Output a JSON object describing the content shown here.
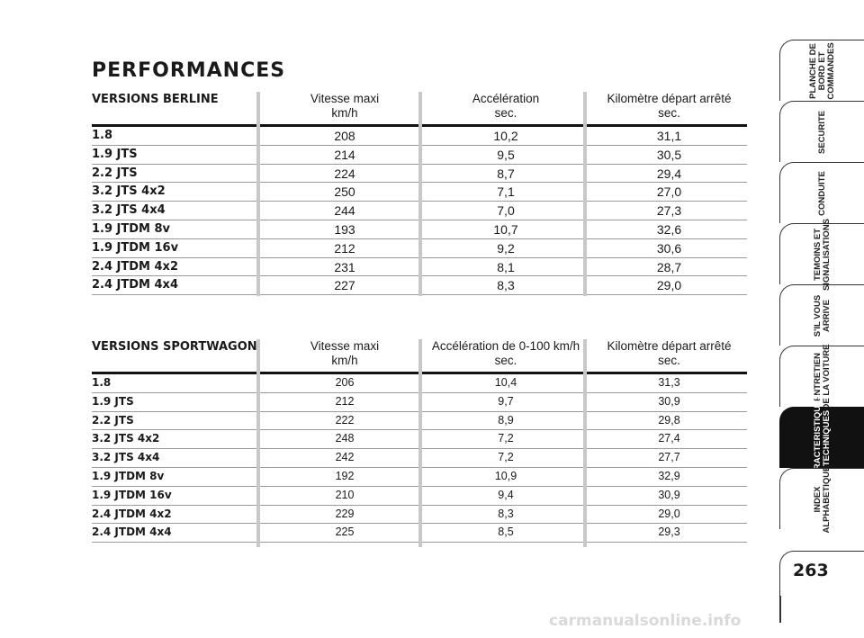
{
  "page_title": "PERFORMANCES",
  "table_berline": {
    "title": "VERSIONS BERLINE",
    "col1": [
      "Vitesse maxi",
      "km/h"
    ],
    "col2": [
      "Accélération",
      "sec."
    ],
    "col3": [
      "Kilomètre départ arrêté",
      "sec."
    ],
    "rows": [
      {
        "name": "1.8",
        "v1": "208",
        "v2": "10,2",
        "v3": "31,1"
      },
      {
        "name": "1.9 JTS",
        "v1": "214",
        "v2": "9,5",
        "v3": "30,5"
      },
      {
        "name": "2.2 JTS",
        "v1": "224",
        "v2": "8,7",
        "v3": "29,4"
      },
      {
        "name": "3.2 JTS 4x2",
        "v1": "250",
        "v2": "7,1",
        "v3": "27,0"
      },
      {
        "name": "3.2 JTS 4x4",
        "v1": "244",
        "v2": "7,0",
        "v3": "27,3"
      },
      {
        "name": "1.9 JTDM 8v",
        "v1": "193",
        "v2": "10,7",
        "v3": "32,6"
      },
      {
        "name": "1.9 JTDM 16v",
        "v1": "212",
        "v2": "9,2",
        "v3": "30,6"
      },
      {
        "name": "2.4 JTDM 4x2",
        "v1": "231",
        "v2": "8,1",
        "v3": "28,7"
      },
      {
        "name": "2.4 JTDM 4x4",
        "v1": "227",
        "v2": "8,3",
        "v3": "29,0"
      }
    ]
  },
  "table_sportwagon": {
    "title": "VERSIONS SPORTWAGON",
    "col1": [
      "Vitesse maxi",
      "km/h"
    ],
    "col2": [
      "Accélération de 0-100 km/h",
      "sec."
    ],
    "col3": [
      "Kilomètre départ arrêté",
      "sec."
    ],
    "rows": [
      {
        "name": "1.8",
        "v1": "206",
        "v2": "10,4",
        "v3": "31,3"
      },
      {
        "name": "1.9 JTS",
        "v1": "212",
        "v2": "9,7",
        "v3": "30,9"
      },
      {
        "name": "2.2 JTS",
        "v1": "222",
        "v2": "8,9",
        "v3": "29,8"
      },
      {
        "name": "3.2 JTS 4x2",
        "v1": "248",
        "v2": "7,2",
        "v3": "27,4"
      },
      {
        "name": "3.2 JTS 4x4",
        "v1": "242",
        "v2": "7,2",
        "v3": "27,7"
      },
      {
        "name": "1.9 JTDM 8v",
        "v1": "192",
        "v2": "10,9",
        "v3": "32,9"
      },
      {
        "name": "1.9 JTDM 16v",
        "v1": "210",
        "v2": "9,4",
        "v3": "30,9"
      },
      {
        "name": "2.4 JTDM 4x2",
        "v1": "229",
        "v2": "8,3",
        "v3": "29,0"
      },
      {
        "name": "2.4 JTDM 4x4",
        "v1": "225",
        "v2": "8,5",
        "v3": "29,3"
      }
    ]
  },
  "tabs": [
    {
      "label": "PLANCHE DE\nBORD ET\nCOMMANDES",
      "active": false
    },
    {
      "label": "SECURITE",
      "active": false
    },
    {
      "label": "CONDUITE",
      "active": false
    },
    {
      "label": "TEMOINS ET\nSIGNALISATIONS",
      "active": false
    },
    {
      "label": "S'IL VOUS\nARRIVE",
      "active": false
    },
    {
      "label": "ENTRETIEN\nDE LA VOITURE",
      "active": false
    },
    {
      "label": "CARACTERISTIQUES\nTECHNIQUES",
      "active": true
    },
    {
      "label": "INDEX\nALPHABETIQUE",
      "active": false
    }
  ],
  "page_number": "263",
  "watermark": "carmanualsonline.info"
}
